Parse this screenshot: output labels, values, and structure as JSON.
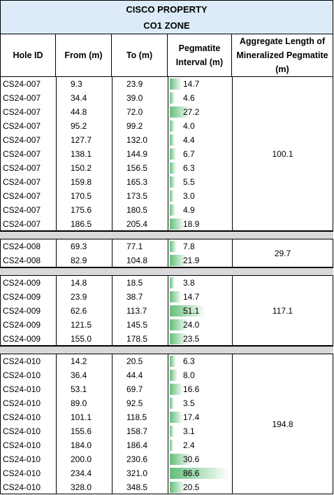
{
  "header": {
    "title": [
      "CISCO PROPERTY",
      "CO1 ZONE"
    ]
  },
  "table": {
    "columns": [
      "Hole ID",
      "From (m)",
      "To (m)",
      "Pegmatite Interval (m)",
      "Aggregate Length of Mineralized Pegmatite (m)"
    ],
    "groups": [
      {
        "rows": [
          [
            "CS24-007",
            "9.3",
            "23.9",
            "14.7"
          ],
          [
            "CS24-007",
            "34.4",
            "39.0",
            "4.6"
          ],
          [
            "CS24-007",
            "44.8",
            "72.0",
            "27.2"
          ],
          [
            "CS24-007",
            "95.2",
            "99.2",
            "4.0"
          ],
          [
            "CS24-007",
            "127.7",
            "132.0",
            "4.4"
          ],
          [
            "CS24-007",
            "138.1",
            "144.9",
            "6.7"
          ],
          [
            "CS24-007",
            "150.2",
            "156.5",
            "6.3"
          ],
          [
            "CS24-007",
            "159.8",
            "165.3",
            "5.5"
          ],
          [
            "CS24-007",
            "170.5",
            "173.5",
            "3.0"
          ],
          [
            "CS24-007",
            "175.6",
            "180.5",
            "4.9"
          ],
          [
            "CS24-007",
            "186.5",
            "205.4",
            "18.9"
          ]
        ],
        "aggregate": "100.1"
      },
      {
        "rows": [
          [
            "CS24-008",
            "69.3",
            "77.1",
            "7.8"
          ],
          [
            "CS24-008",
            "82.9",
            "104.8",
            "21.9"
          ]
        ],
        "aggregate": "29.7"
      },
      {
        "rows": [
          [
            "CS24-009",
            "14.8",
            "18.5",
            "3.8"
          ],
          [
            "CS24-009",
            "23.9",
            "38.7",
            "14.7"
          ],
          [
            "CS24-009",
            "62.6",
            "113.7",
            "51.1"
          ],
          [
            "CS24-009",
            "121.5",
            "145.5",
            "24.0"
          ],
          [
            "CS24-009",
            "155.0",
            "178.5",
            "23.5"
          ]
        ],
        "aggregate": "117.1"
      },
      {
        "rows": [
          [
            "CS24-010",
            "14.2",
            "20.5",
            "6.3"
          ],
          [
            "CS24-010",
            "36.4",
            "44.4",
            "8.0"
          ],
          [
            "CS24-010",
            "53.1",
            "69.7",
            "16.6"
          ],
          [
            "CS24-010",
            "89.0",
            "92.5",
            "3.5"
          ],
          [
            "CS24-010",
            "101.1",
            "118.5",
            "17.4"
          ],
          [
            "CS24-010",
            "155.6",
            "158.7",
            "3.1"
          ],
          [
            "CS24-010",
            "184.0",
            "186.4",
            "2.4"
          ],
          [
            "CS24-010",
            "200.0",
            "230.6",
            "30.6"
          ],
          [
            "CS24-010",
            "234.4",
            "321.0",
            "86.6"
          ],
          [
            "CS24-010",
            "328.0",
            "348.5",
            "20.5"
          ]
        ],
        "aggregate": "194.8"
      }
    ]
  }
}
